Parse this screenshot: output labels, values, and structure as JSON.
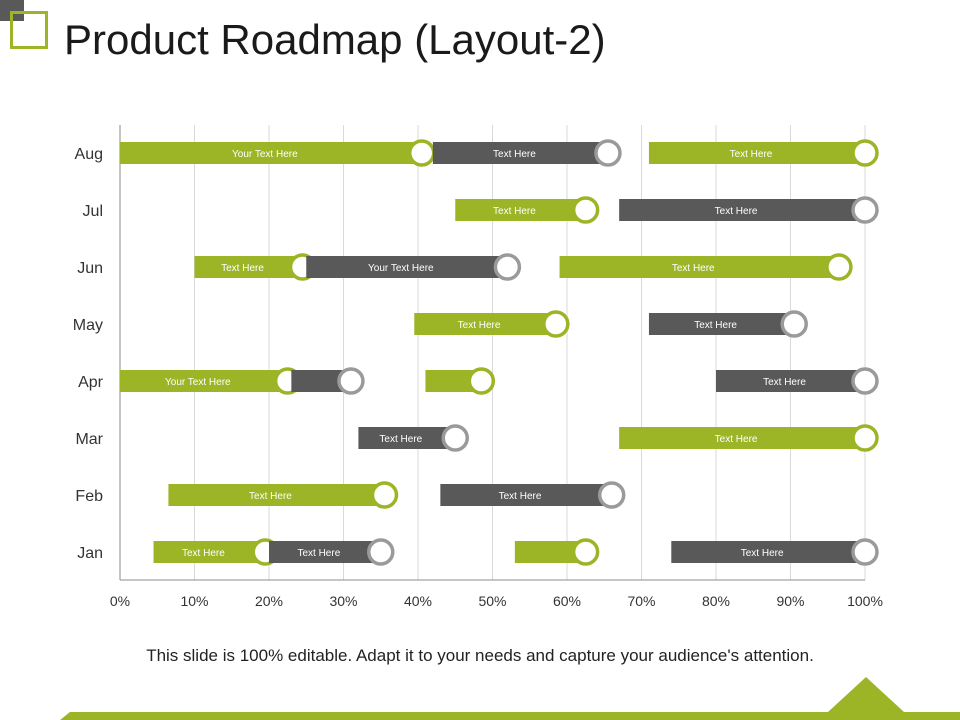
{
  "title": "Product Roadmap (Layout-2)",
  "footer": "This slide is 100% editable. Adapt it to your needs and capture your audience's attention.",
  "colors": {
    "accent": "#9bb526",
    "dark": "#595959",
    "grid": "#d9d9d9",
    "knob_ring_green": "#9bb526",
    "knob_ring_gray": "#9a9a9a"
  },
  "chart_data": {
    "type": "bar",
    "orientation": "horizontal-gantt",
    "categories": [
      "Aug",
      "Jul",
      "Jun",
      "May",
      "Apr",
      "Mar",
      "Feb",
      "Jan"
    ],
    "xlim": [
      0,
      100
    ],
    "x_ticks": [
      "0%",
      "10%",
      "20%",
      "30%",
      "40%",
      "50%",
      "60%",
      "70%",
      "80%",
      "90%",
      "100%"
    ],
    "grid": true,
    "bars": [
      {
        "row": "Aug",
        "start": 0,
        "end": 40.5,
        "color": "green",
        "label": "Your Text Here"
      },
      {
        "row": "Aug",
        "start": 42,
        "end": 65.5,
        "color": "gray",
        "label": "Text Here"
      },
      {
        "row": "Aug",
        "start": 71,
        "end": 100,
        "color": "green",
        "label": "Text Here"
      },
      {
        "row": "Jul",
        "start": 45,
        "end": 62.5,
        "color": "green",
        "label": "Text Here"
      },
      {
        "row": "Jul",
        "start": 67,
        "end": 100,
        "color": "gray",
        "label": "Text Here"
      },
      {
        "row": "Jun",
        "start": 10,
        "end": 24.5,
        "color": "green",
        "label": "Text Here"
      },
      {
        "row": "Jun",
        "start": 25,
        "end": 52,
        "color": "gray",
        "label": "Your Text Here"
      },
      {
        "row": "Jun",
        "start": 59,
        "end": 96.5,
        "color": "green",
        "label": "Text Here"
      },
      {
        "row": "May",
        "start": 39.5,
        "end": 58.5,
        "color": "green",
        "label": "Text Here"
      },
      {
        "row": "May",
        "start": 71,
        "end": 90.5,
        "color": "gray",
        "label": "Text Here"
      },
      {
        "row": "Apr",
        "start": 0,
        "end": 22.5,
        "color": "green",
        "label": "Your Text Here"
      },
      {
        "row": "Apr",
        "start": 23,
        "end": 31,
        "color": "gray",
        "label": ""
      },
      {
        "row": "Apr",
        "start": 41,
        "end": 48.5,
        "color": "green",
        "label": ""
      },
      {
        "row": "Apr",
        "start": 80,
        "end": 100,
        "color": "gray",
        "label": "Text Here"
      },
      {
        "row": "Mar",
        "start": 32,
        "end": 45,
        "color": "gray",
        "label": "Text Here"
      },
      {
        "row": "Mar",
        "start": 67,
        "end": 100,
        "color": "green",
        "label": "Text Here"
      },
      {
        "row": "Feb",
        "start": 6.5,
        "end": 35.5,
        "color": "green",
        "label": "Text Here"
      },
      {
        "row": "Feb",
        "start": 43,
        "end": 66,
        "color": "gray",
        "label": "Text Here"
      },
      {
        "row": "Jan",
        "start": 4.5,
        "end": 19.5,
        "color": "green",
        "label": "Text Here"
      },
      {
        "row": "Jan",
        "start": 20,
        "end": 35,
        "color": "gray",
        "label": "Text Here"
      },
      {
        "row": "Jan",
        "start": 53,
        "end": 62.5,
        "color": "green",
        "label": ""
      },
      {
        "row": "Jan",
        "start": 74,
        "end": 100,
        "color": "gray",
        "label": "Text Here"
      }
    ]
  }
}
